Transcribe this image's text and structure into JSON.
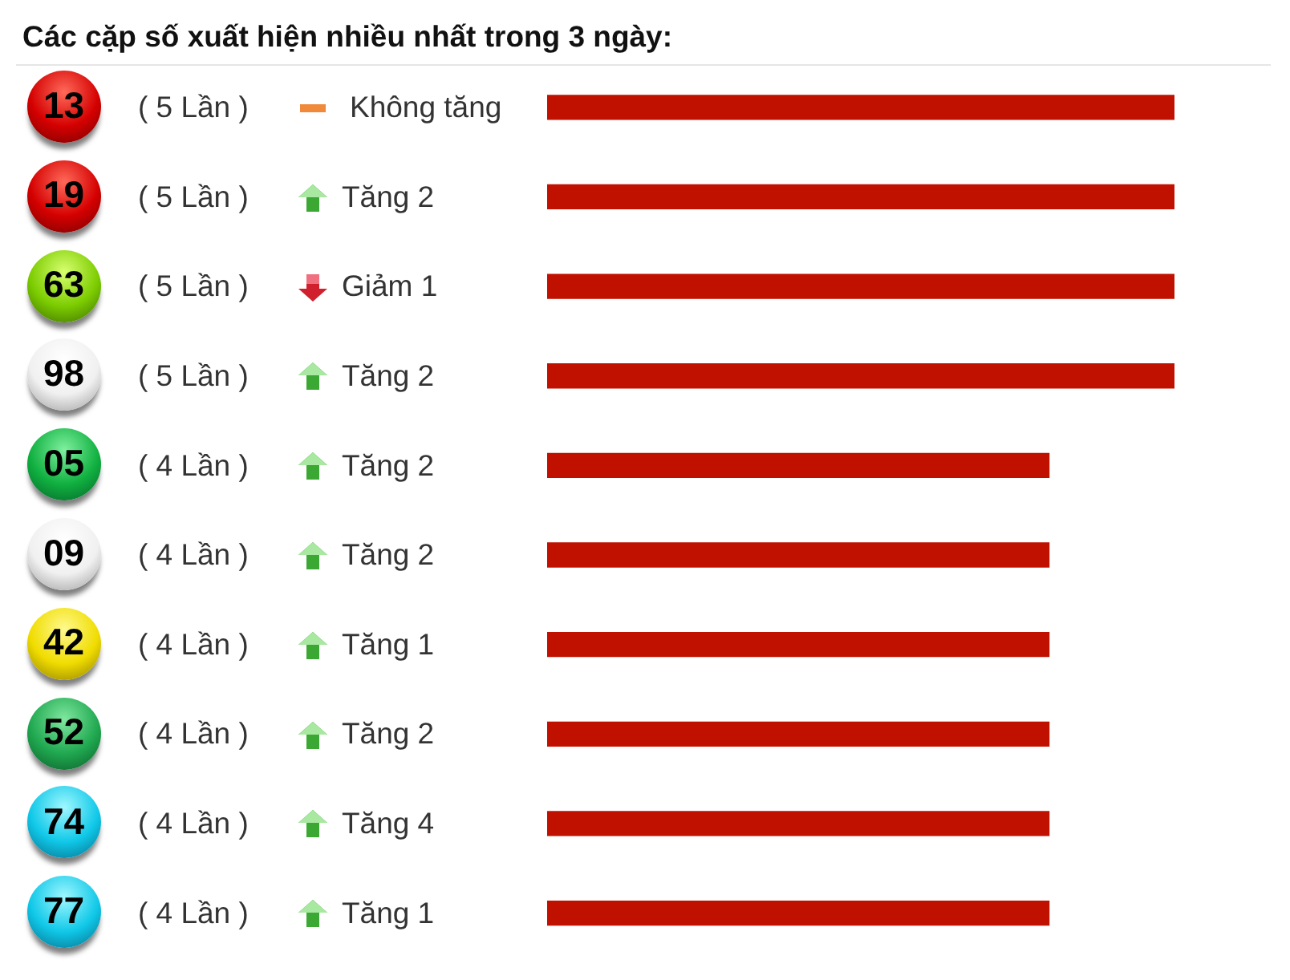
{
  "chart_data": {
    "type": "bar",
    "orientation": "horizontal",
    "title": "Các cặp số xuất hiện nhiều nhất trong 3 ngày:",
    "categories": [
      "13",
      "19",
      "63",
      "98",
      "05",
      "09",
      "42",
      "52",
      "74",
      "77"
    ],
    "values": [
      5,
      5,
      5,
      5,
      4,
      4,
      4,
      4,
      4,
      4
    ],
    "value_labels": [
      "( 5 Lần )",
      "( 5 Lần )",
      "( 5 Lần )",
      "( 5 Lần )",
      "( 4 Lần )",
      "( 4 Lần )",
      "( 4 Lần )",
      "( 4 Lần )",
      "( 4 Lần )",
      "( 4 Lần )"
    ],
    "color": "#c01000",
    "tick_labels": "y",
    "annotations": [
      "Không tăng",
      "Tăng 2",
      "Giảm 1",
      "Tăng 2",
      "Tăng 2",
      "Tăng 2",
      "Tăng 1",
      "Tăng 2",
      "Tăng 4",
      "Tăng 1"
    ]
  }
}
